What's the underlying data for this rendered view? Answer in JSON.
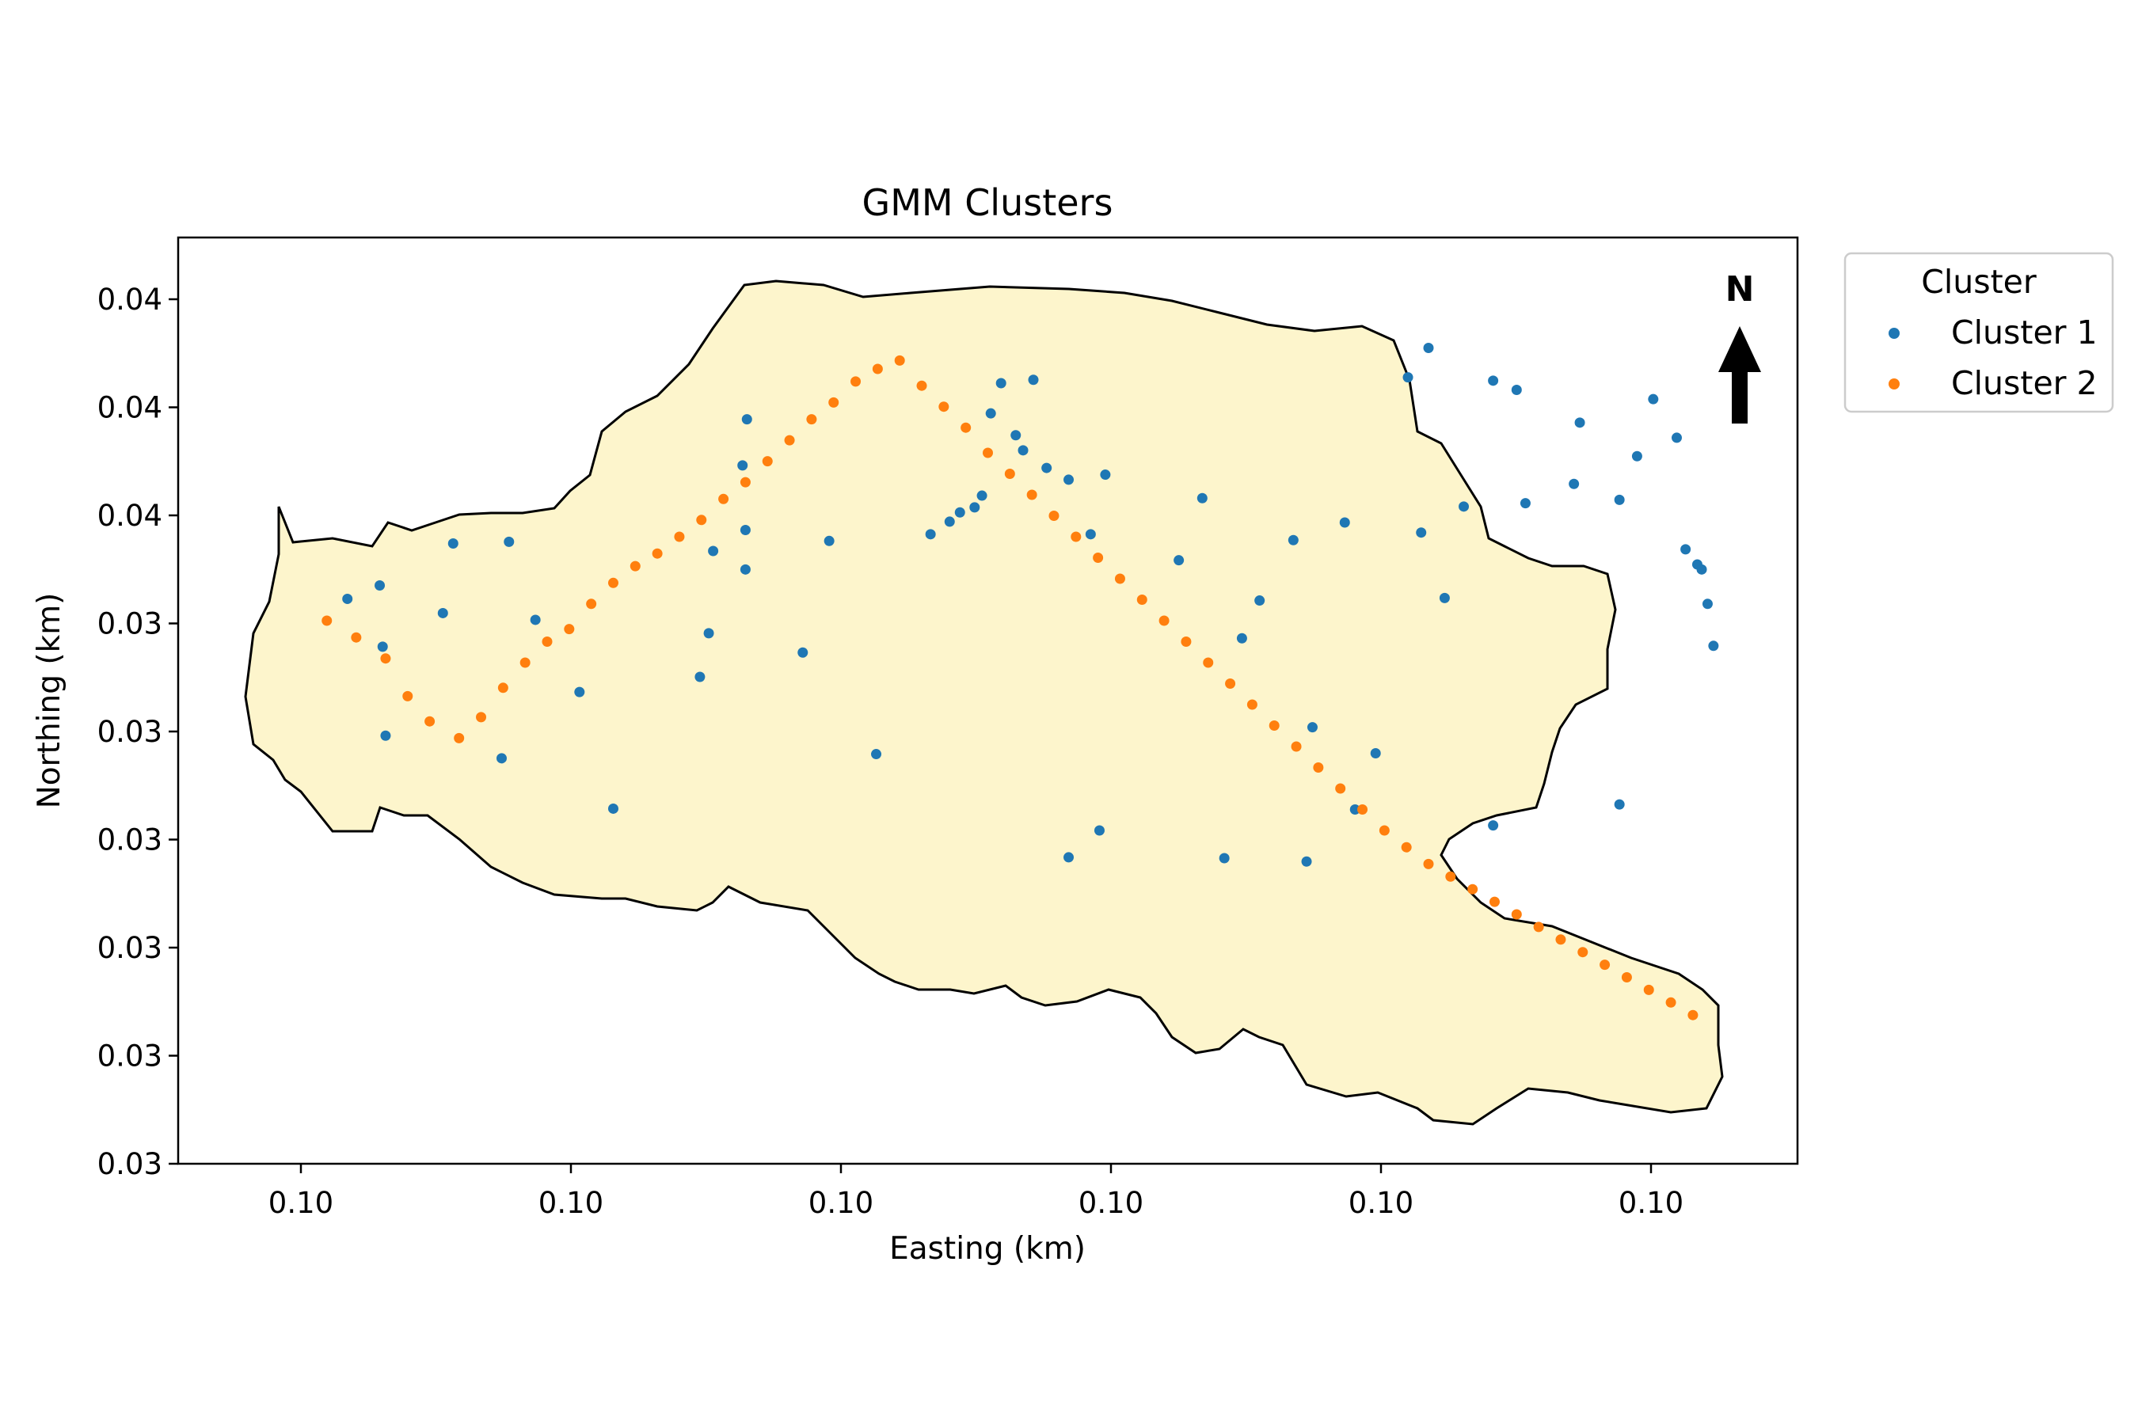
{
  "chart_data": {
    "type": "scatter",
    "title": "GMM Clusters",
    "xlabel": "Easting (km)",
    "ylabel": "Northing (km)",
    "x_tick_labels": [
      "0.10",
      "0.10",
      "0.10",
      "0.10",
      "0.10",
      "0.10"
    ],
    "y_tick_labels": [
      "0.04",
      "0.04",
      "0.04",
      "0.03",
      "0.03",
      "0.03",
      "0.03",
      "0.03",
      "0.03"
    ],
    "xlim": [
      0,
      100
    ],
    "ylim": [
      0,
      100
    ],
    "legend": {
      "title": "Cluster",
      "placement": "outside-top-right"
    },
    "north_arrow": "N",
    "region_fill": "#fdf5cc",
    "grid": false,
    "note": "",
    "series": [
      {
        "name": "Cluster 1",
        "color": "#1f77b4",
        "points": [
          [
            6.4,
            62.6
          ],
          [
            8.6,
            64.2
          ],
          [
            8.8,
            56.9
          ],
          [
            9.0,
            46.3
          ],
          [
            12.9,
            60.9
          ],
          [
            13.6,
            69.2
          ],
          [
            16.9,
            43.6
          ],
          [
            17.4,
            69.4
          ],
          [
            19.2,
            60.1
          ],
          [
            22.2,
            51.5
          ],
          [
            24.5,
            37.6
          ],
          [
            30.4,
            53.3
          ],
          [
            31.0,
            58.5
          ],
          [
            31.3,
            68.3
          ],
          [
            33.3,
            78.5
          ],
          [
            33.5,
            66.1
          ],
          [
            33.5,
            70.8
          ],
          [
            33.6,
            84.0
          ],
          [
            37.4,
            56.2
          ],
          [
            39.2,
            69.5
          ],
          [
            42.4,
            44.1
          ],
          [
            46.1,
            70.3
          ],
          [
            47.4,
            71.8
          ],
          [
            48.1,
            72.9
          ],
          [
            49.1,
            73.5
          ],
          [
            49.6,
            74.9
          ],
          [
            50.2,
            84.7
          ],
          [
            50.9,
            88.3
          ],
          [
            51.9,
            82.1
          ],
          [
            52.4,
            80.3
          ],
          [
            53.1,
            88.7
          ],
          [
            54.0,
            78.2
          ],
          [
            55.5,
            31.8
          ],
          [
            55.5,
            76.8
          ],
          [
            57.0,
            70.3
          ],
          [
            57.6,
            35.0
          ],
          [
            58.0,
            77.4
          ],
          [
            63.0,
            67.2
          ],
          [
            64.6,
            74.6
          ],
          [
            66.1,
            31.7
          ],
          [
            67.3,
            57.9
          ],
          [
            68.5,
            62.4
          ],
          [
            70.8,
            69.6
          ],
          [
            71.7,
            31.3
          ],
          [
            72.1,
            47.3
          ],
          [
            74.3,
            71.7
          ],
          [
            75.0,
            37.5
          ],
          [
            76.4,
            44.2
          ],
          [
            78.6,
            89.0
          ],
          [
            79.5,
            70.5
          ],
          [
            80.0,
            92.5
          ],
          [
            81.1,
            62.7
          ],
          [
            82.4,
            73.6
          ],
          [
            84.4,
            35.6
          ],
          [
            84.4,
            88.6
          ],
          [
            86.0,
            87.5
          ],
          [
            86.6,
            74.0
          ],
          [
            89.9,
            76.3
          ],
          [
            90.3,
            83.6
          ],
          [
            93.0,
            38.1
          ],
          [
            93.0,
            74.4
          ],
          [
            94.2,
            79.6
          ],
          [
            95.3,
            86.4
          ],
          [
            96.9,
            81.8
          ],
          [
            97.5,
            68.5
          ],
          [
            98.3,
            66.7
          ],
          [
            98.6,
            66.1
          ],
          [
            99.0,
            62.0
          ],
          [
            99.4,
            57.0
          ]
        ],
        "note": "points are approximate positions in normalized axis units (0-100)"
      },
      {
        "name": "Cluster 2",
        "color": "#ff7f0e",
        "points": [
          [
            5.0,
            60.0
          ],
          [
            7.0,
            58.0
          ],
          [
            9.0,
            55.5
          ],
          [
            10.5,
            51.0
          ],
          [
            12.0,
            48.0
          ],
          [
            14.0,
            46.0
          ],
          [
            15.5,
            48.5
          ],
          [
            17.0,
            52.0
          ],
          [
            18.5,
            55.0
          ],
          [
            20.0,
            57.5
          ],
          [
            21.5,
            59.0
          ],
          [
            23.0,
            62.0
          ],
          [
            24.5,
            64.5
          ],
          [
            26.0,
            66.5
          ],
          [
            27.5,
            68.0
          ],
          [
            29.0,
            70.0
          ],
          [
            30.5,
            72.0
          ],
          [
            32.0,
            74.5
          ],
          [
            33.5,
            76.5
          ],
          [
            35.0,
            79.0
          ],
          [
            36.5,
            81.5
          ],
          [
            38.0,
            84.0
          ],
          [
            39.5,
            86.0
          ],
          [
            41.0,
            88.5
          ],
          [
            42.5,
            90.0
          ],
          [
            44.0,
            91.0
          ],
          [
            45.5,
            88.0
          ],
          [
            47.0,
            85.5
          ],
          [
            48.5,
            83.0
          ],
          [
            50.0,
            80.0
          ],
          [
            51.5,
            77.5
          ],
          [
            53.0,
            75.0
          ],
          [
            54.5,
            72.5
          ],
          [
            56.0,
            70.0
          ],
          [
            57.5,
            67.5
          ],
          [
            59.0,
            65.0
          ],
          [
            60.5,
            62.5
          ],
          [
            62.0,
            60.0
          ],
          [
            63.5,
            57.5
          ],
          [
            65.0,
            55.0
          ],
          [
            66.5,
            52.5
          ],
          [
            68.0,
            50.0
          ],
          [
            69.5,
            47.5
          ],
          [
            71.0,
            45.0
          ],
          [
            72.5,
            42.5
          ],
          [
            74.0,
            40.0
          ],
          [
            75.5,
            37.5
          ],
          [
            77.0,
            35.0
          ],
          [
            78.5,
            33.0
          ],
          [
            80.0,
            31.0
          ],
          [
            81.5,
            29.5
          ],
          [
            83.0,
            28.0
          ],
          [
            84.5,
            26.5
          ],
          [
            86.0,
            25.0
          ],
          [
            87.5,
            23.5
          ],
          [
            89.0,
            22.0
          ],
          [
            90.5,
            20.5
          ],
          [
            92.0,
            19.0
          ],
          [
            93.5,
            17.5
          ],
          [
            95.0,
            16.0
          ],
          [
            96.5,
            14.5
          ],
          [
            98.0,
            13.0
          ]
        ],
        "note": "points are approximate positions in normalized axis units (0-100)"
      }
    ]
  }
}
